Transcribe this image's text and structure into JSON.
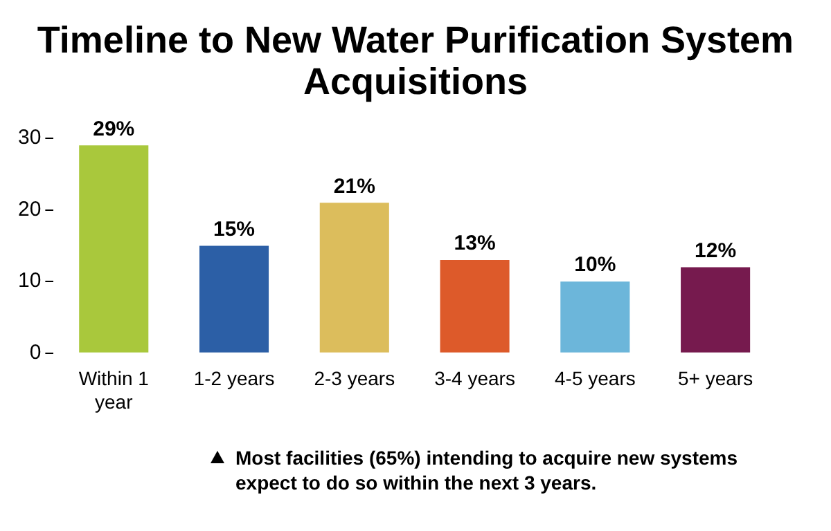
{
  "chart_data": {
    "type": "bar",
    "title": "Timeline to New Water Purification System Acquisitions",
    "categories": [
      "Within 1 year",
      "1-2 years",
      "2-3 years",
      "3-4 years",
      "4-5 years",
      "5+ years"
    ],
    "values": [
      29,
      15,
      21,
      13,
      10,
      12
    ],
    "value_labels": [
      "29%",
      "15%",
      "21%",
      "13%",
      "10%",
      "12%"
    ],
    "colors": [
      "#a9c83c",
      "#2c5fa6",
      "#dcbd5c",
      "#dd5a2a",
      "#6cb6da",
      "#761a4e"
    ],
    "ylim": [
      0,
      30
    ],
    "yticks": [
      0,
      10,
      20,
      30
    ],
    "grid": false,
    "legend": false,
    "annotations": [
      "Most facilities (65%) intending to acquire new systems expect to do so within the next 3 years."
    ]
  }
}
